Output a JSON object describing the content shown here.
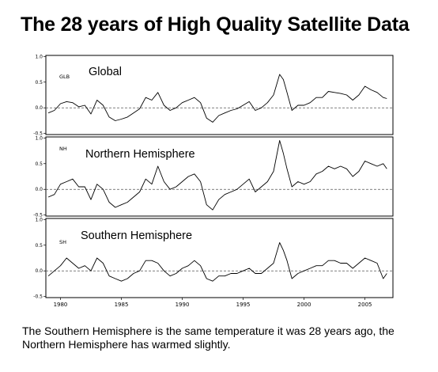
{
  "title": "The 28 years of High Quality Satellite Data",
  "caption": "The Southern Hemisphere is the same temperature it was 28 years ago, the Northern Hemisphere has warmed slightly.",
  "colors": {
    "line": "#000000",
    "zero_line": "#555555",
    "frame": "#000000"
  },
  "chart_data": [
    {
      "type": "line",
      "panel_tag": "GLB",
      "label": "Global",
      "xlim": [
        1978.8,
        2007.3
      ],
      "ylim": [
        -0.52,
        1.02
      ],
      "yticks": [
        "1.0",
        "0.5",
        "0.0",
        "-0.5"
      ],
      "ytick_values": [
        1.0,
        0.5,
        0.0,
        -0.5
      ],
      "xticks": [],
      "reference_line": 0.0,
      "series": [
        {
          "x": [
            1979.0,
            1979.5,
            1980.0,
            1980.5,
            1981.0,
            1981.5,
            1982.0,
            1982.5,
            1983.0,
            1983.5,
            1984.0,
            1984.5,
            1985.0,
            1985.5,
            1986.0,
            1986.5,
            1987.0,
            1987.5,
            1988.0,
            1988.5,
            1989.0,
            1989.5,
            1990.0,
            1990.5,
            1991.0,
            1991.5,
            1992.0,
            1992.5,
            1993.0,
            1993.5,
            1994.0,
            1994.5,
            1995.0,
            1995.5,
            1996.0,
            1996.5,
            1997.0,
            1997.5,
            1998.0,
            1998.3,
            1998.6,
            1999.0,
            1999.5,
            2000.0,
            2000.5,
            2001.0,
            2001.5,
            2002.0,
            2002.5,
            2003.0,
            2003.5,
            2004.0,
            2004.5,
            2005.0,
            2005.5,
            2006.0,
            2006.5,
            2006.8
          ],
          "y": [
            -0.1,
            -0.05,
            0.08,
            0.12,
            0.1,
            0.02,
            0.05,
            -0.12,
            0.15,
            0.05,
            -0.18,
            -0.25,
            -0.22,
            -0.18,
            -0.1,
            -0.02,
            0.2,
            0.15,
            0.3,
            0.05,
            -0.05,
            0.0,
            0.1,
            0.15,
            0.2,
            0.1,
            -0.2,
            -0.28,
            -0.15,
            -0.1,
            -0.05,
            -0.02,
            0.05,
            0.12,
            -0.05,
            0.0,
            0.1,
            0.25,
            0.65,
            0.55,
            0.3,
            -0.05,
            0.05,
            0.05,
            0.1,
            0.2,
            0.2,
            0.32,
            0.3,
            0.28,
            0.25,
            0.15,
            0.25,
            0.42,
            0.35,
            0.3,
            0.2,
            0.18
          ]
        }
      ]
    },
    {
      "type": "line",
      "panel_tag": "NH",
      "label": "Northern Hemisphere",
      "xlim": [
        1978.8,
        2007.3
      ],
      "ylim": [
        -0.52,
        1.02
      ],
      "yticks": [
        "1.0",
        "0.5",
        "0.0",
        "-0.5"
      ],
      "ytick_values": [
        1.0,
        0.5,
        0.0,
        -0.5
      ],
      "xticks": [],
      "reference_line": 0.0,
      "series": [
        {
          "x": [
            1979.0,
            1979.5,
            1980.0,
            1980.5,
            1981.0,
            1981.5,
            1982.0,
            1982.5,
            1983.0,
            1983.5,
            1984.0,
            1984.5,
            1985.0,
            1985.5,
            1986.0,
            1986.5,
            1987.0,
            1987.5,
            1988.0,
            1988.5,
            1989.0,
            1989.5,
            1990.0,
            1990.5,
            1991.0,
            1991.5,
            1992.0,
            1992.5,
            1993.0,
            1993.5,
            1994.0,
            1994.5,
            1995.0,
            1995.5,
            1996.0,
            1996.5,
            1997.0,
            1997.5,
            1998.0,
            1998.3,
            1998.6,
            1999.0,
            1999.5,
            2000.0,
            2000.5,
            2001.0,
            2001.5,
            2002.0,
            2002.5,
            2003.0,
            2003.5,
            2004.0,
            2004.5,
            2005.0,
            2005.5,
            2006.0,
            2006.5,
            2006.8
          ],
          "y": [
            -0.15,
            -0.1,
            0.1,
            0.15,
            0.2,
            0.05,
            0.05,
            -0.2,
            0.1,
            0.0,
            -0.25,
            -0.35,
            -0.3,
            -0.25,
            -0.15,
            -0.05,
            0.2,
            0.1,
            0.45,
            0.15,
            0.0,
            0.05,
            0.15,
            0.25,
            0.3,
            0.15,
            -0.3,
            -0.4,
            -0.2,
            -0.1,
            -0.05,
            0.0,
            0.1,
            0.2,
            -0.05,
            0.05,
            0.15,
            0.35,
            0.95,
            0.7,
            0.4,
            0.05,
            0.15,
            0.1,
            0.15,
            0.3,
            0.35,
            0.45,
            0.4,
            0.45,
            0.4,
            0.25,
            0.35,
            0.55,
            0.5,
            0.45,
            0.5,
            0.4
          ]
        }
      ]
    },
    {
      "type": "line",
      "panel_tag": "SH",
      "label": "Southern Hemisphere",
      "xlim": [
        1978.8,
        2007.3
      ],
      "ylim": [
        -0.52,
        1.02
      ],
      "yticks": [
        "1.0",
        "0.5",
        "0.0",
        "-0.5"
      ],
      "ytick_values": [
        1.0,
        0.5,
        0.0,
        -0.5
      ],
      "xticks": [
        "1980",
        "1985",
        "1990",
        "1995",
        "2000",
        "2005"
      ],
      "xtick_values": [
        1980,
        1985,
        1990,
        1995,
        2000,
        2005
      ],
      "reference_line": 0.0,
      "series": [
        {
          "x": [
            1979.0,
            1979.5,
            1980.0,
            1980.5,
            1981.0,
            1981.5,
            1982.0,
            1982.5,
            1983.0,
            1983.5,
            1984.0,
            1984.5,
            1985.0,
            1985.5,
            1986.0,
            1986.5,
            1987.0,
            1987.5,
            1988.0,
            1988.5,
            1989.0,
            1989.5,
            1990.0,
            1990.5,
            1991.0,
            1991.5,
            1992.0,
            1992.5,
            1993.0,
            1993.5,
            1994.0,
            1994.5,
            1995.0,
            1995.5,
            1996.0,
            1996.5,
            1997.0,
            1997.5,
            1998.0,
            1998.3,
            1998.6,
            1999.0,
            1999.5,
            2000.0,
            2000.5,
            2001.0,
            2001.5,
            2002.0,
            2002.5,
            2003.0,
            2003.5,
            2004.0,
            2004.5,
            2005.0,
            2005.5,
            2006.0,
            2006.5,
            2006.8
          ],
          "y": [
            -0.1,
            0.0,
            0.1,
            0.25,
            0.15,
            0.05,
            0.1,
            0.0,
            0.25,
            0.15,
            -0.1,
            -0.15,
            -0.2,
            -0.15,
            -0.05,
            0.0,
            0.2,
            0.2,
            0.15,
            0.0,
            -0.1,
            -0.05,
            0.05,
            0.1,
            0.2,
            0.1,
            -0.15,
            -0.2,
            -0.1,
            -0.1,
            -0.05,
            -0.05,
            0.0,
            0.05,
            -0.05,
            -0.05,
            0.05,
            0.15,
            0.55,
            0.4,
            0.2,
            -0.15,
            -0.05,
            0.0,
            0.05,
            0.1,
            0.1,
            0.2,
            0.2,
            0.15,
            0.15,
            0.05,
            0.15,
            0.25,
            0.2,
            0.15,
            -0.15,
            -0.05
          ]
        }
      ]
    }
  ]
}
